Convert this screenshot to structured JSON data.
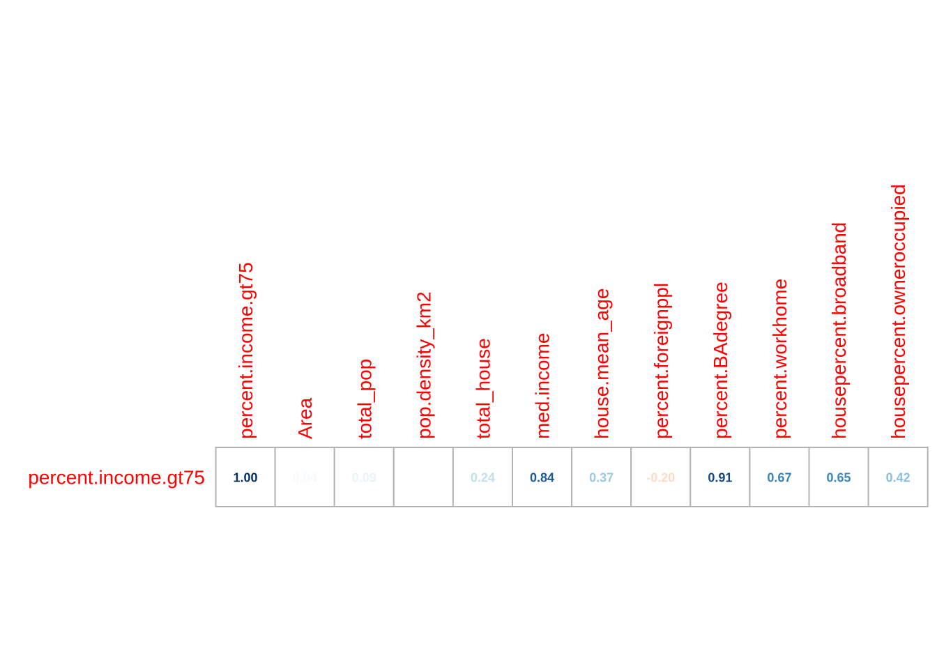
{
  "chart_data": {
    "type": "heatmap",
    "title": "",
    "rows": [
      "percent.income.gt75"
    ],
    "columns": [
      "percent.income.gt75",
      "Area",
      "total_pop",
      "pop.density_km2",
      "total_house",
      "med.income",
      "house.mean_age",
      "percent.foreignppl",
      "percent.BAdegree",
      "percent.workhome",
      "housepercent.broadband",
      "housepercent.owneroccupied"
    ],
    "values": [
      [
        1.0,
        0.04,
        0.09,
        0.01,
        0.24,
        0.84,
        0.37,
        -0.2,
        0.91,
        0.67,
        0.65,
        0.42
      ]
    ],
    "value_range": [
      -1,
      1
    ],
    "label_color": "#ff0000",
    "grid_color": "#b3b3b3",
    "color_scale": {
      "negative": [
        "#ffffff",
        "#fddbc7",
        "#f4a582",
        "#d6604d",
        "#b2182b",
        "#67001f"
      ],
      "positive": [
        "#ffffff",
        "#d1e5f0",
        "#92c5de",
        "#4393c3",
        "#2166ac",
        "#053061"
      ]
    }
  }
}
